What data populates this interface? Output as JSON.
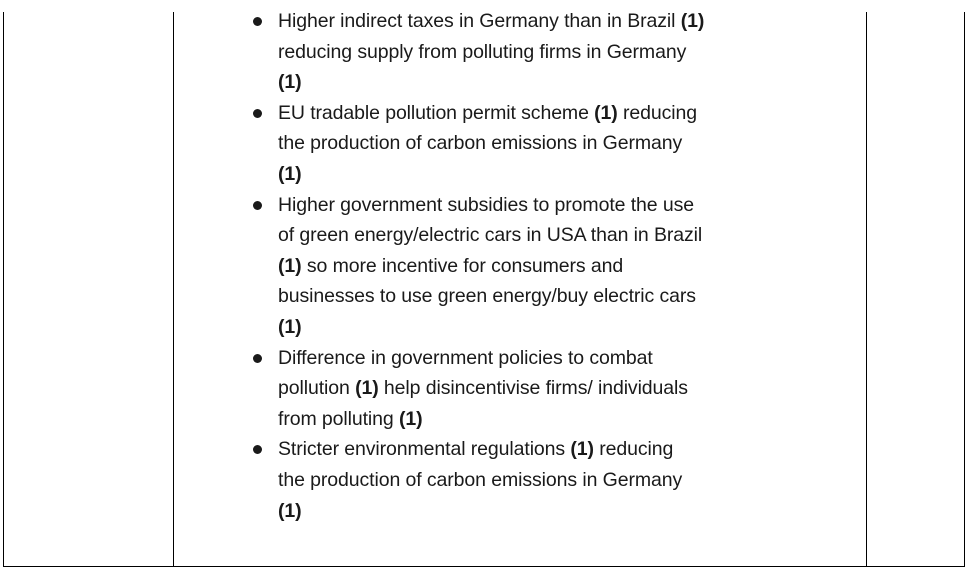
{
  "bullets": [
    {
      "lines": [
        [
          {
            "t": "Higher indirect taxes in Germany than in Brazil "
          },
          {
            "t": "(1)",
            "b": true
          }
        ],
        [
          {
            "t": "reducing supply from polluting firms in Germany"
          }
        ],
        [
          {
            "t": "(1)",
            "b": true
          }
        ]
      ]
    },
    {
      "lines": [
        [
          {
            "t": "EU tradable pollution permit scheme "
          },
          {
            "t": "(1)",
            "b": true
          },
          {
            "t": " reducing"
          }
        ],
        [
          {
            "t": "the production of carbon emissions in Germany"
          }
        ],
        [
          {
            "t": "(1)",
            "b": true
          }
        ]
      ]
    },
    {
      "lines": [
        [
          {
            "t": "Higher government subsidies to promote the use"
          }
        ],
        [
          {
            "t": "of green energy/electric cars in USA than in Brazil"
          }
        ],
        [
          {
            "t": "(1)",
            "b": true
          },
          {
            "t": " so more incentive for consumers and"
          }
        ],
        [
          {
            "t": "businesses to use green energy/buy electric cars"
          }
        ],
        [
          {
            "t": "(1)",
            "b": true
          }
        ]
      ]
    },
    {
      "lines": [
        [
          {
            "t": "Difference in government policies to combat"
          }
        ],
        [
          {
            "t": "pollution "
          },
          {
            "t": "(1)",
            "b": true
          },
          {
            "t": " help disincentivise firms/ individuals"
          }
        ],
        [
          {
            "t": "from polluting "
          },
          {
            "t": "(1)",
            "b": true
          }
        ]
      ]
    },
    {
      "lines": [
        [
          {
            "t": "Stricter environmental regulations "
          },
          {
            "t": "(1)",
            "b": true
          },
          {
            "t": " reducing"
          }
        ],
        [
          {
            "t": "the production of carbon emissions in Germany"
          }
        ],
        [
          {
            "t": "(1)",
            "b": true
          }
        ]
      ]
    }
  ]
}
